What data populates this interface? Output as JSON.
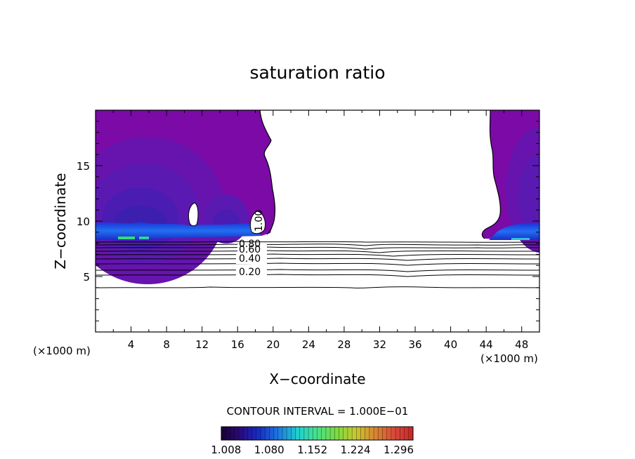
{
  "chart_data": {
    "type": "heatmap",
    "title": "saturation ratio",
    "xlabel": "X−coordinate",
    "ylabel": "Z−coordinate",
    "x_unit_left": "(×1000 m)",
    "x_unit_right": "(×1000 m)",
    "xlim": [
      0,
      50
    ],
    "ylim": [
      0,
      20
    ],
    "x_ticks": [
      4,
      8,
      12,
      16,
      20,
      24,
      28,
      32,
      36,
      40,
      44,
      48
    ],
    "y_ticks": [
      5,
      10,
      15
    ],
    "contour_interval_text": "CONTOUR INTERVAL = 1.000E−01",
    "colorbar": {
      "tick_labels": [
        "1.008",
        "1.080",
        "1.152",
        "1.224",
        "1.296"
      ],
      "min": 1.0,
      "max": 1.32,
      "colors": [
        "#1a0033",
        "#2a0a80",
        "#1530c8",
        "#1f7adf",
        "#1fd0d0",
        "#4ae08a",
        "#7adc40",
        "#c8c832",
        "#d88830",
        "#d84a3a",
        "#c82828"
      ]
    },
    "contours": [
      {
        "label": "0.20",
        "level": 0.2
      },
      {
        "label": "0.40",
        "level": 0.4
      },
      {
        "label": "0.60",
        "level": 0.6
      },
      {
        "label": "0.80",
        "level": 0.8
      },
      {
        "label": "1.00",
        "level": 1.0
      }
    ],
    "fill_colors": {
      "background": "#7b0aa7",
      "mid": "#5e18b0",
      "deep": "#3d1ca8",
      "band": "#2040e8",
      "band_light": "#2a80f0",
      "band_green": "#30e070"
    }
  }
}
